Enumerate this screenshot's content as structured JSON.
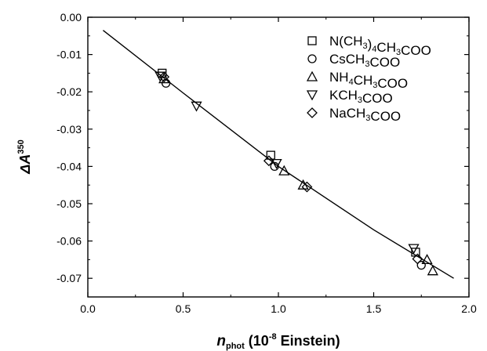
{
  "chart_data": {
    "type": "scatter",
    "xlabel": {
      "main": "n",
      "sub": "phot",
      "rest": " (10",
      "sup": "-8",
      "tail": " Einstein)"
    },
    "ylabel": {
      "main": "ΔA",
      "sup": "350"
    },
    "xlim": [
      0.0,
      2.0
    ],
    "ylim": [
      -0.075,
      0.0
    ],
    "xticks": [
      0.0,
      0.5,
      1.0,
      1.5,
      2.0
    ],
    "xtick_labels": [
      "0.0",
      "0.5",
      "1.0",
      "1.5",
      "2.0"
    ],
    "yticks": [
      0.0,
      -0.01,
      -0.02,
      -0.03,
      -0.04,
      -0.05,
      -0.06,
      -0.07
    ],
    "ytick_labels": [
      "0.00",
      "-0.01",
      "-0.02",
      "-0.03",
      "-0.04",
      "-0.05",
      "-0.06",
      "-0.07"
    ],
    "grid": false,
    "legend_position": "top-right",
    "series": [
      {
        "name": "N(CH3)4CH3COO",
        "legend_parts": [
          [
            "N(CH",
            ""
          ],
          [
            "3",
            "sub"
          ],
          [
            ")",
            ""
          ],
          [
            "4",
            "sub"
          ],
          [
            "CH",
            ""
          ],
          [
            "3",
            "sub"
          ],
          [
            "COO",
            ""
          ]
        ],
        "marker": "square",
        "x": [
          0.39,
          0.96,
          1.72
        ],
        "y": [
          -0.015,
          -0.037,
          -0.063
        ]
      },
      {
        "name": "CsCH3COO",
        "legend_parts": [
          [
            "CsCH",
            ""
          ],
          [
            "3",
            "sub"
          ],
          [
            "COO",
            ""
          ]
        ],
        "marker": "circle",
        "x": [
          0.41,
          0.98,
          1.75
        ],
        "y": [
          -0.0177,
          -0.04,
          -0.0665
        ]
      },
      {
        "name": "NH4CH3COO",
        "legend_parts": [
          [
            "NH",
            ""
          ],
          [
            "4",
            "sub"
          ],
          [
            "CH",
            ""
          ],
          [
            "3",
            "sub"
          ],
          [
            "COO",
            ""
          ]
        ],
        "marker": "triangle-up",
        "x": [
          0.4,
          1.03,
          1.13,
          1.78,
          1.81
        ],
        "y": [
          -0.0165,
          -0.0412,
          -0.045,
          -0.065,
          -0.068
        ]
      },
      {
        "name": "KCH3COO",
        "legend_parts": [
          [
            "KCH",
            ""
          ],
          [
            "3",
            "sub"
          ],
          [
            "COO",
            ""
          ]
        ],
        "marker": "triangle-down",
        "x": [
          0.38,
          0.57,
          0.99,
          1.71
        ],
        "y": [
          -0.0158,
          -0.0238,
          -0.0392,
          -0.062
        ]
      },
      {
        "name": "NaCH3COO",
        "legend_parts": [
          [
            "NaCH",
            ""
          ],
          [
            "3",
            "sub"
          ],
          [
            "COO",
            ""
          ]
        ],
        "marker": "diamond",
        "x": [
          0.4,
          0.95,
          1.15,
          1.73
        ],
        "y": [
          -0.016,
          -0.0385,
          -0.0455,
          -0.0648
        ]
      }
    ],
    "fit_line": {
      "x": [
        0.08,
        0.5,
        1.0,
        1.5,
        1.92
      ],
      "y": [
        -0.0035,
        -0.0203,
        -0.04,
        -0.057,
        -0.07
      ]
    }
  }
}
